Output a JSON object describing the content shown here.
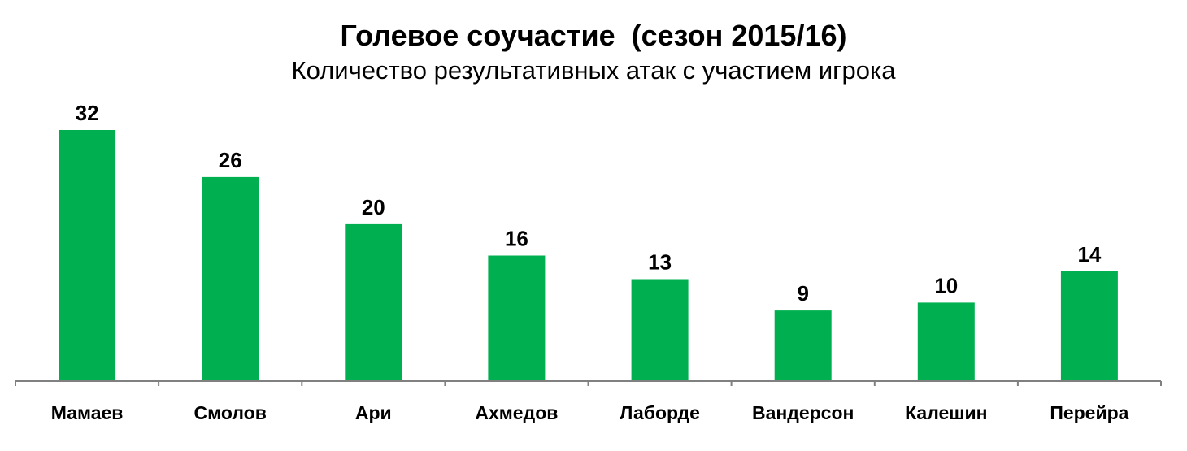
{
  "chart_data": {
    "type": "bar",
    "title": "Голевое соучастие  (сезон 2015/16)",
    "subtitle": "Количество результативных атак с участием игрока",
    "categories": [
      "Мамаев",
      "Смолов",
      "Ари",
      "Ахмедов",
      "Лаборде",
      "Вандерсон",
      "Калешин",
      "Перейра"
    ],
    "values": [
      32,
      26,
      20,
      16,
      13,
      9,
      10,
      14
    ],
    "data_labels": [
      "32",
      "26",
      "20",
      "16",
      "13",
      "9",
      "10",
      "14"
    ],
    "xlabel": "",
    "ylabel": "",
    "ylim": [
      0,
      32
    ],
    "bar_color": "#00B050",
    "axis_color": "#808080",
    "grid": false,
    "legend": "none"
  }
}
